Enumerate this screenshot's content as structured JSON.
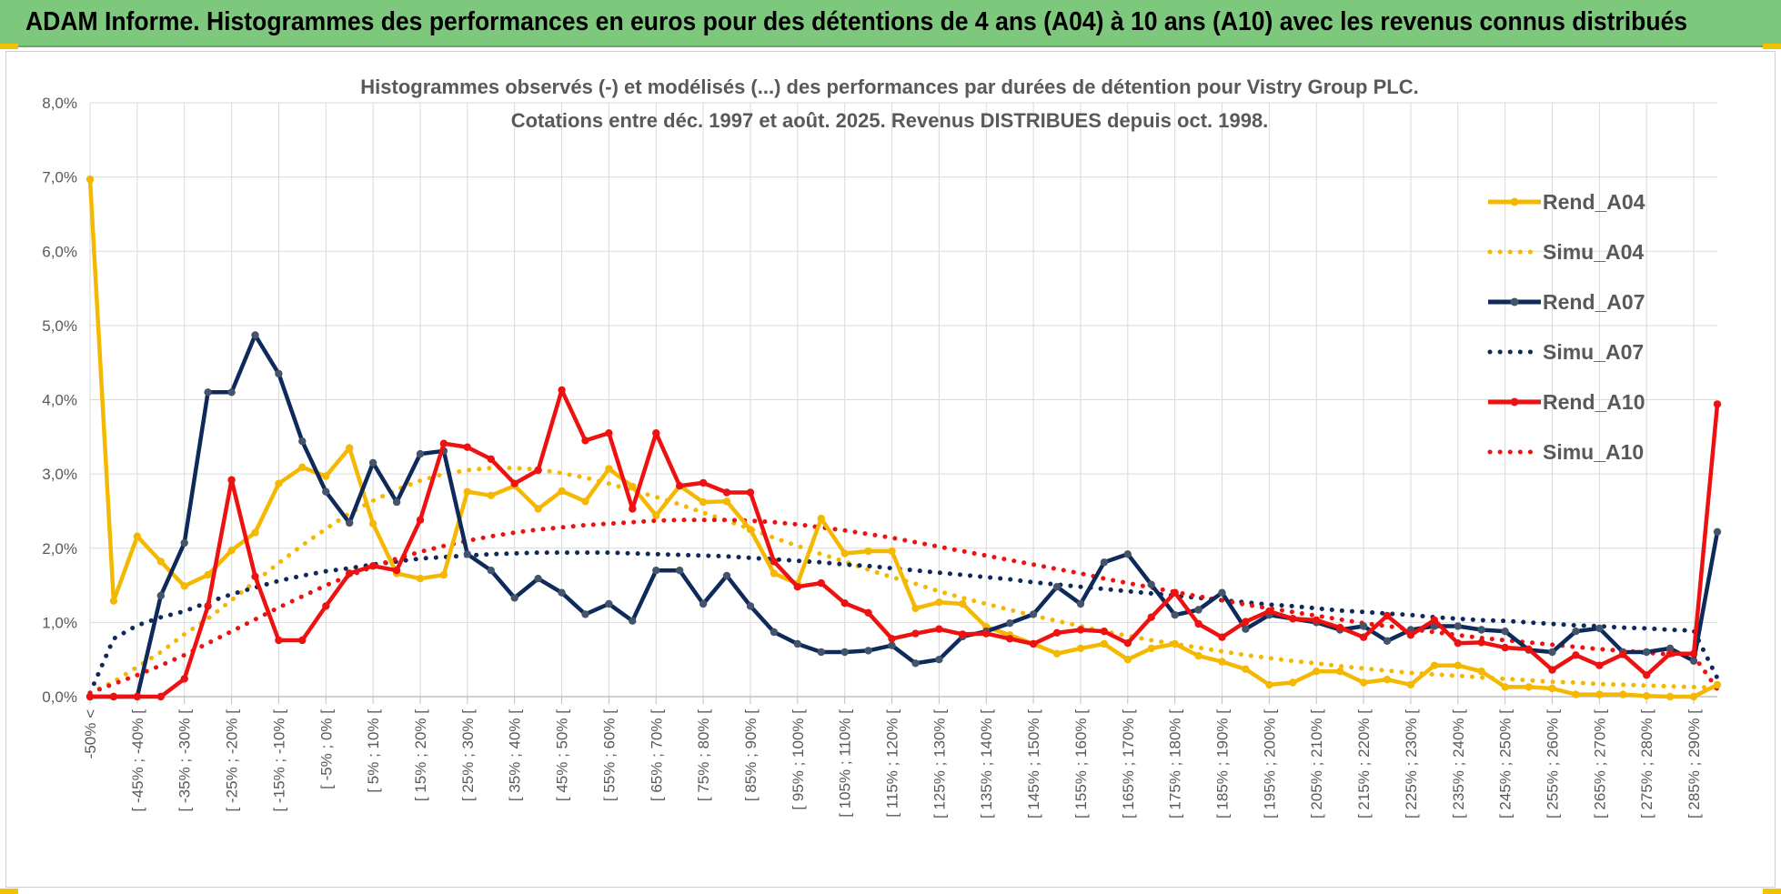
{
  "banner": {
    "title": "ADAM Informe. Histogrammes des performances en euros pour des détentions de 4 ans (A04) à 10 ans (A10) avec les revenus connus distribués"
  },
  "colors": {
    "banner_bg": "#7ec87e",
    "A04": "#f5b800",
    "A07": "#0e2a5a",
    "A10": "#ee1111",
    "grid": "#d9d9d9",
    "text": "#595959"
  },
  "chart_data": {
    "type": "line",
    "title": "Histogrammes observés (-) et modélisés (...) des performances par durées de détention pour Vistry Group PLC.",
    "subtitle": "Cotations entre déc. 1997 et août. 2025. Revenus DISTRIBUES depuis oct. 1998.",
    "xlabel": "",
    "ylabel": "",
    "ylim": [
      0,
      8
    ],
    "y_ticks": [
      "0,0%",
      "1,0%",
      "2,0%",
      "3,0%",
      "4,0%",
      "5,0%",
      "6,0%",
      "7,0%",
      "8,0%"
    ],
    "grid": true,
    "legend_position": "top-right",
    "x_tick_labels": [
      "-50% <",
      "[ -45% ; -40% [",
      "[ -35% ; -30% [",
      "[ -25% ; -20% [",
      "[ -15% ; -10% [",
      "[ -5% ; 0% [",
      "[ 5% ; 10% [",
      "[ 15% ; 20% [",
      "[ 25% ; 30% [",
      "[ 35% ; 40% [",
      "[ 45% ; 50% [",
      "[ 55% ; 60% [",
      "[ 65% ; 70% [",
      "[ 75% ; 80% [",
      "[ 85% ; 90% [",
      "[ 95% ; 100% [",
      "[ 105% ; 110% [",
      "[ 115% ; 120% [",
      "[ 125% ; 130% [",
      "[ 135% ; 140% [",
      "[ 145% ; 150% [",
      "[ 155% ; 160% [",
      "[ 165% ; 170% [",
      "[ 175% ; 180% [",
      "[ 185% ; 190% [",
      "[ 195% ; 200% [",
      "[ 205% ; 210% [",
      "[ 215% ; 220% [",
      "[ 225% ; 230% [",
      "[ 235% ; 240% [",
      "[ 245% ; 250% [",
      "[ 255% ; 260% [",
      "[ 265% ; 270% [",
      "[ 275% ; 280% [",
      "[ 285% ; 290% ["
    ],
    "series": [
      {
        "name": "Rend_A04",
        "style": "solid",
        "color": "#f5b800",
        "values": [
          6.97,
          1.29,
          2.16,
          1.82,
          1.49,
          1.64,
          1.97,
          2.21,
          2.87,
          3.09,
          2.97,
          3.35,
          2.33,
          1.66,
          1.59,
          1.64,
          2.76,
          2.71,
          2.84,
          2.53,
          2.77,
          2.63,
          3.07,
          2.83,
          2.44,
          2.84,
          2.62,
          2.63,
          2.25,
          1.66,
          1.52,
          2.4,
          1.93,
          1.96,
          1.96,
          1.19,
          1.27,
          1.25,
          0.94,
          0.83,
          0.71,
          0.58,
          0.65,
          0.71,
          0.5,
          0.65,
          0.71,
          0.55,
          0.47,
          0.37,
          0.16,
          0.19,
          0.34,
          0.34,
          0.19,
          0.23,
          0.16,
          0.42,
          0.42,
          0.34,
          0.13,
          0.13,
          0.11,
          0.03,
          0.03,
          0.03,
          0.01,
          0.0,
          0.0,
          0.16
        ]
      },
      {
        "name": "Simu_A04",
        "style": "dotted",
        "color": "#f5b800",
        "values": [
          0.05,
          0.2,
          0.4,
          0.6,
          0.84,
          1.05,
          1.3,
          1.55,
          1.8,
          2.04,
          2.26,
          2.47,
          2.64,
          2.79,
          2.91,
          3.0,
          3.05,
          3.08,
          3.08,
          3.06,
          3.01,
          2.95,
          2.87,
          2.78,
          2.69,
          2.59,
          2.48,
          2.37,
          2.26,
          2.14,
          2.03,
          1.92,
          1.82,
          1.71,
          1.61,
          1.52,
          1.42,
          1.33,
          1.25,
          1.17,
          1.09,
          1.02,
          0.95,
          0.88,
          0.82,
          0.76,
          0.71,
          0.66,
          0.61,
          0.56,
          0.52,
          0.48,
          0.45,
          0.41,
          0.38,
          0.35,
          0.32,
          0.3,
          0.28,
          0.26,
          0.24,
          0.22,
          0.2,
          0.19,
          0.17,
          0.16,
          0.15,
          0.14,
          0.13,
          0.12
        ]
      },
      {
        "name": "Rend_A07",
        "style": "solid",
        "color": "#0e2a5a",
        "values": [
          0.0,
          0.0,
          0.0,
          1.36,
          2.07,
          4.1,
          4.1,
          4.87,
          4.35,
          3.44,
          2.76,
          2.34,
          3.15,
          2.62,
          3.27,
          3.31,
          1.92,
          1.7,
          1.33,
          1.59,
          1.4,
          1.11,
          1.25,
          1.02,
          1.7,
          1.7,
          1.25,
          1.63,
          1.22,
          0.87,
          0.71,
          0.6,
          0.6,
          0.62,
          0.69,
          0.45,
          0.5,
          0.81,
          0.88,
          0.99,
          1.11,
          1.48,
          1.25,
          1.81,
          1.92,
          1.51,
          1.1,
          1.17,
          1.4,
          0.91,
          1.1,
          1.05,
          1.0,
          0.9,
          0.95,
          0.75,
          0.9,
          0.95,
          0.95,
          0.9,
          0.88,
          0.63,
          0.6,
          0.88,
          0.92,
          0.6,
          0.6,
          0.65,
          0.48,
          2.22
        ]
      },
      {
        "name": "Simu_A07",
        "style": "dotted",
        "color": "#0e2a5a",
        "values": [
          0.05,
          0.78,
          0.96,
          1.07,
          1.15,
          1.27,
          1.38,
          1.47,
          1.56,
          1.63,
          1.69,
          1.73,
          1.78,
          1.82,
          1.86,
          1.88,
          1.9,
          1.92,
          1.93,
          1.94,
          1.94,
          1.94,
          1.94,
          1.93,
          1.92,
          1.91,
          1.9,
          1.89,
          1.87,
          1.85,
          1.83,
          1.81,
          1.78,
          1.76,
          1.73,
          1.7,
          1.67,
          1.64,
          1.61,
          1.58,
          1.54,
          1.51,
          1.48,
          1.45,
          1.42,
          1.39,
          1.36,
          1.33,
          1.3,
          1.27,
          1.24,
          1.22,
          1.19,
          1.16,
          1.14,
          1.12,
          1.1,
          1.07,
          1.05,
          1.03,
          1.02,
          1.0,
          0.98,
          0.96,
          0.95,
          0.93,
          0.92,
          0.9,
          0.89,
          0.25
        ]
      },
      {
        "name": "Rend_A10",
        "style": "solid",
        "color": "#ee1111",
        "values": [
          0.0,
          0.0,
          0.0,
          0.0,
          0.24,
          1.22,
          2.92,
          1.62,
          0.76,
          0.76,
          1.22,
          1.66,
          1.76,
          1.7,
          2.38,
          3.41,
          3.36,
          3.2,
          2.87,
          3.05,
          4.13,
          3.45,
          3.55,
          2.53,
          3.55,
          2.84,
          2.88,
          2.75,
          2.75,
          1.82,
          1.48,
          1.53,
          1.26,
          1.13,
          0.78,
          0.85,
          0.91,
          0.84,
          0.85,
          0.78,
          0.71,
          0.86,
          0.9,
          0.88,
          0.72,
          1.07,
          1.4,
          0.98,
          0.8,
          1.01,
          1.15,
          1.05,
          1.03,
          0.93,
          0.8,
          1.09,
          0.83,
          1.03,
          0.72,
          0.73,
          0.66,
          0.64,
          0.36,
          0.56,
          0.42,
          0.57,
          0.29,
          0.58,
          0.58,
          3.94
        ]
      },
      {
        "name": "Simu_A10",
        "style": "dotted",
        "color": "#ee1111",
        "values": [
          0.05,
          0.17,
          0.29,
          0.42,
          0.56,
          0.72,
          0.88,
          1.04,
          1.2,
          1.35,
          1.5,
          1.63,
          1.75,
          1.86,
          1.95,
          2.03,
          2.1,
          2.16,
          2.21,
          2.25,
          2.28,
          2.31,
          2.33,
          2.35,
          2.37,
          2.38,
          2.38,
          2.38,
          2.37,
          2.35,
          2.32,
          2.28,
          2.24,
          2.19,
          2.14,
          2.08,
          2.02,
          1.96,
          1.9,
          1.84,
          1.78,
          1.72,
          1.66,
          1.59,
          1.53,
          1.47,
          1.41,
          1.35,
          1.3,
          1.24,
          1.19,
          1.14,
          1.09,
          1.04,
          0.99,
          0.95,
          0.91,
          0.87,
          0.83,
          0.79,
          0.76,
          0.73,
          0.7,
          0.67,
          0.64,
          0.62,
          0.59,
          0.57,
          0.55,
          0.1
        ]
      }
    ]
  }
}
